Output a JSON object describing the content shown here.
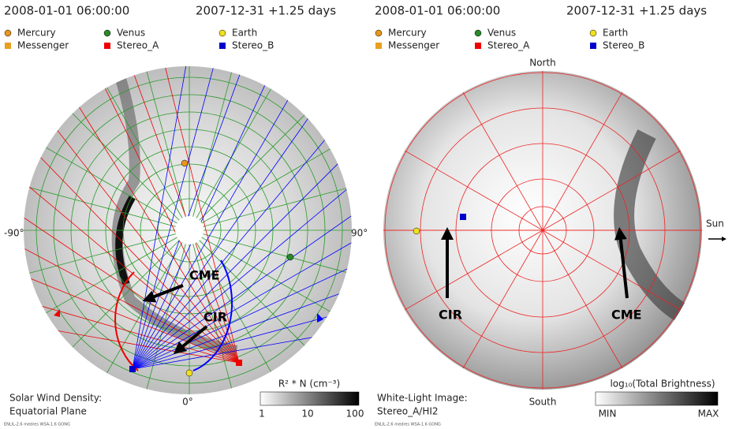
{
  "panels": [
    {
      "date": "2008-01-01 06:00:00",
      "elapsed": "2007-12-31 +1.25 days",
      "legend": [
        "Mercury",
        "Venus",
        "Earth",
        "Messenger",
        "Stereo_A",
        "Stereo_B"
      ],
      "axis_labels": [
        "-90°",
        "90°",
        "0°"
      ],
      "annotations": [
        "CME",
        "CIR"
      ],
      "caption": [
        "Solar Wind Density:",
        "Equatorial Plane"
      ],
      "colorbar": {
        "label": "R² * N (cm⁻³)",
        "ticks": [
          "1",
          "10",
          "100"
        ]
      },
      "footnote": "ENLIL-2.6 medres WSA-1.6 GONG"
    },
    {
      "date": "2008-01-01 06:00:00",
      "elapsed": "2007-12-31 +1.25 days",
      "legend": [
        "Mercury",
        "Venus",
        "Earth",
        "Messenger",
        "Stereo_A",
        "Stereo_B"
      ],
      "axis_labels": [
        "North",
        "South",
        "Sun"
      ],
      "annotations": [
        "CIR",
        "CME"
      ],
      "caption": [
        "White-Light Image:",
        "Stereo_A/HI2"
      ],
      "colorbar": {
        "label": "log₁₀(Total Brightness)",
        "ticks": [
          "MIN",
          "MAX"
        ]
      },
      "footnote": "ENLIL-2.6 medres WSA-1.6 GONG"
    }
  ]
}
